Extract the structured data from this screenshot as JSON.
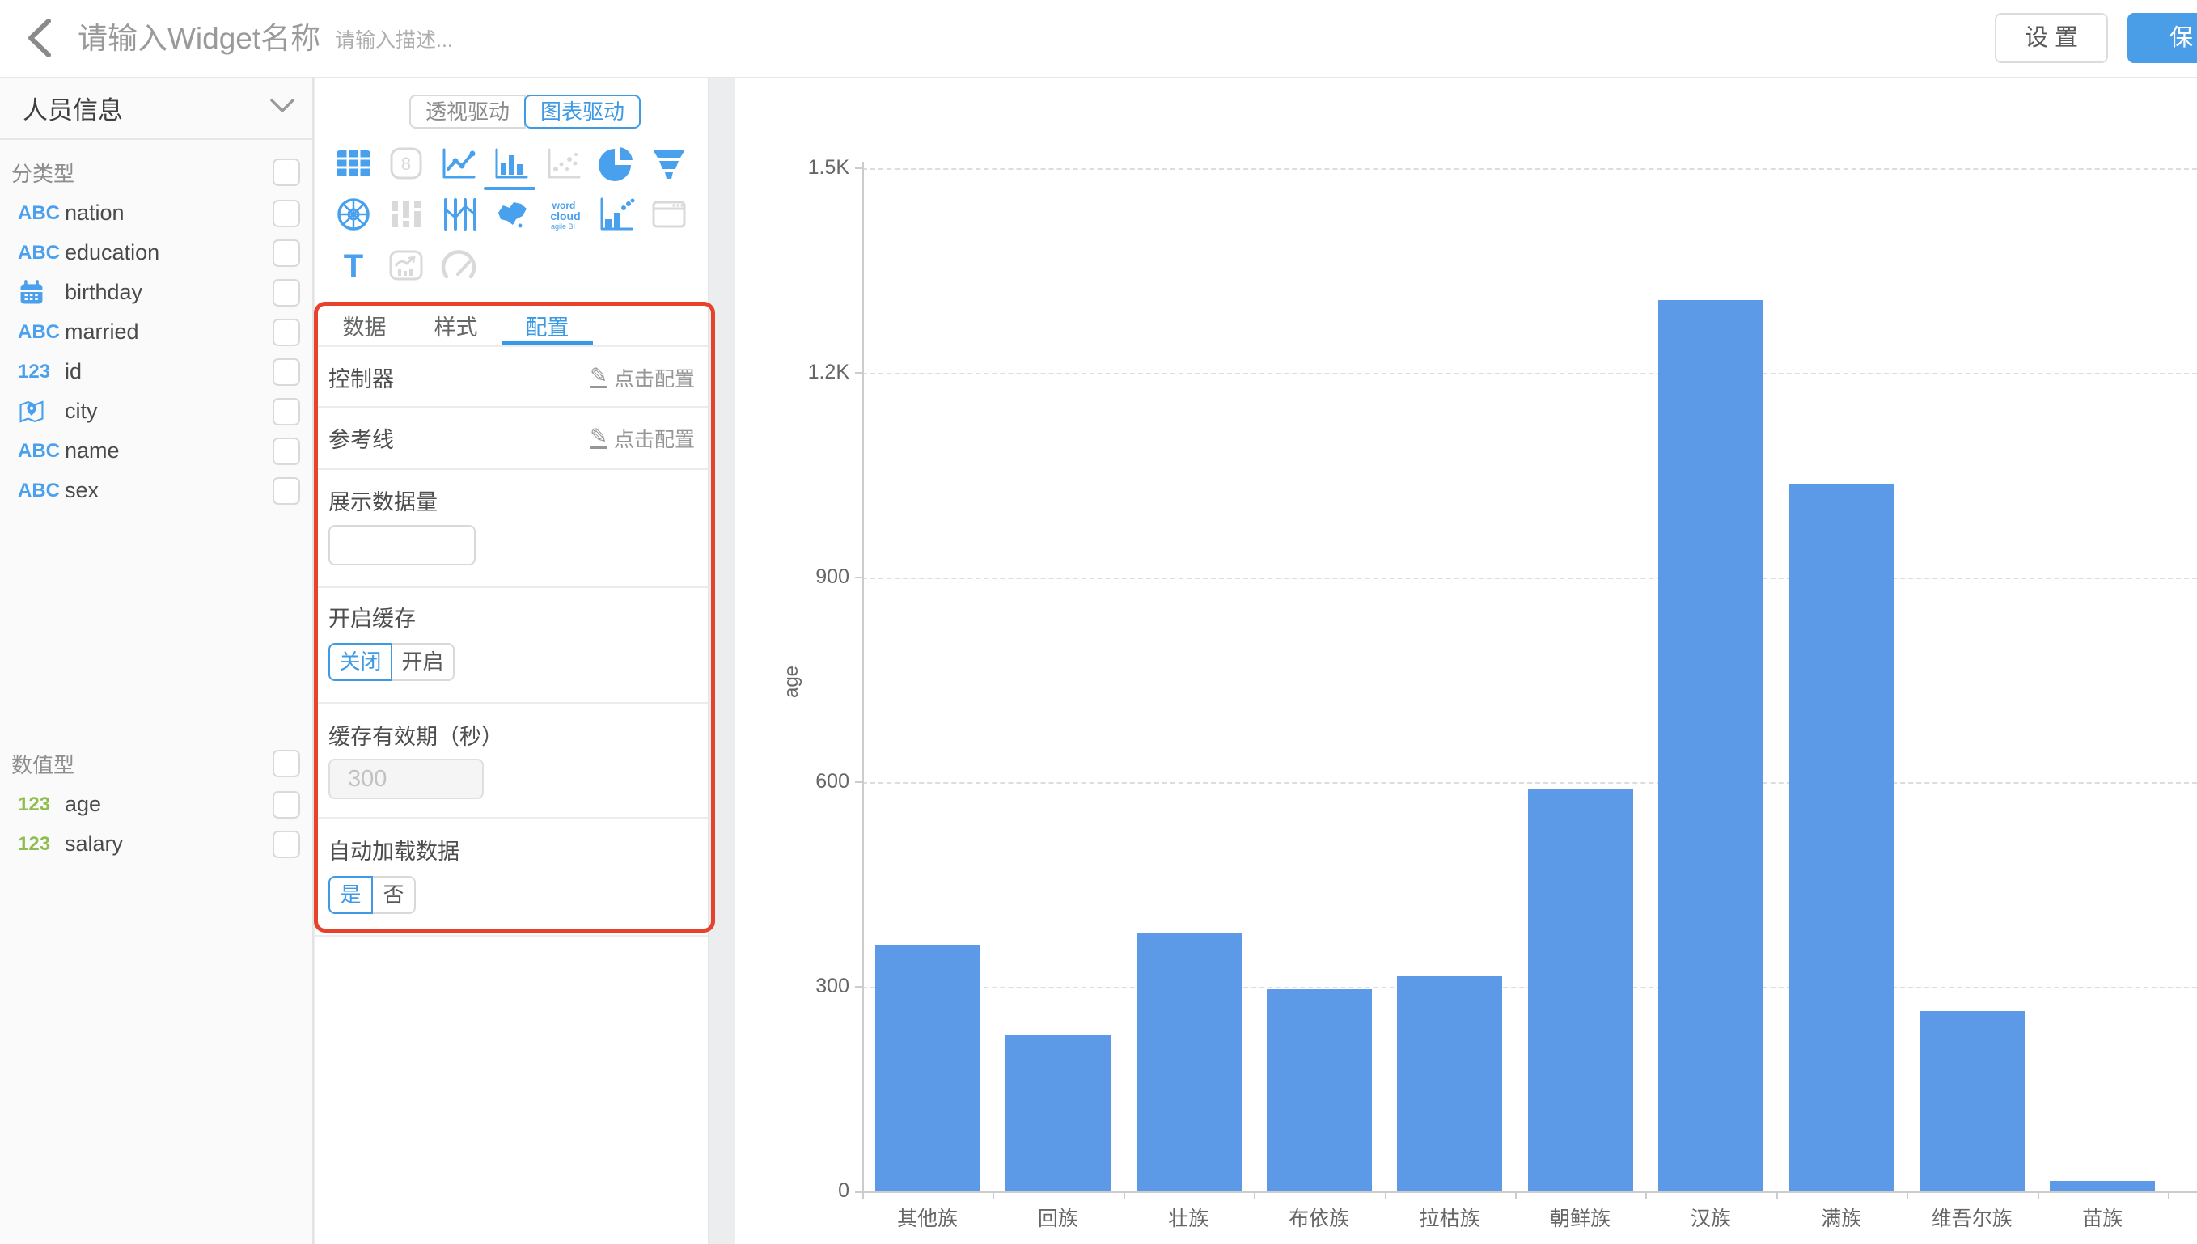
{
  "topbar": {
    "back_icon": "chevron-left",
    "title_placeholder": "请输入Widget名称",
    "desc_placeholder": "请输入描述...",
    "settings_label": "设 置",
    "save_label": "保 存"
  },
  "sidebar": {
    "view_name": "人员信息",
    "collapse_icon": "chevron-down",
    "groups": [
      {
        "title": "分类型",
        "fields": [
          {
            "icon": "abc",
            "icon_text": "ABC",
            "icon_color": "blue",
            "label": "nation"
          },
          {
            "icon": "abc",
            "icon_text": "ABC",
            "icon_color": "blue",
            "label": "education"
          },
          {
            "icon": "calendar",
            "icon_text": "",
            "icon_color": "blue",
            "label": "birthday"
          },
          {
            "icon": "abc",
            "icon_text": "ABC",
            "icon_color": "blue",
            "label": "married"
          },
          {
            "icon": "123",
            "icon_text": "123",
            "icon_color": "blue",
            "label": "id"
          },
          {
            "icon": "geo",
            "icon_text": "",
            "icon_color": "blue",
            "label": "city"
          },
          {
            "icon": "abc",
            "icon_text": "ABC",
            "icon_color": "blue",
            "label": "name"
          },
          {
            "icon": "abc",
            "icon_text": "ABC",
            "icon_color": "blue",
            "label": "sex"
          }
        ]
      },
      {
        "title": "数值型",
        "fields": [
          {
            "icon": "123",
            "icon_text": "123",
            "icon_color": "green",
            "label": "age"
          },
          {
            "icon": "123",
            "icon_text": "123",
            "icon_color": "green",
            "label": "salary"
          }
        ]
      }
    ]
  },
  "panel": {
    "mode_toggle": {
      "options": [
        "透视驱动",
        "图表驱动"
      ],
      "selected": "图表驱动"
    },
    "chart_types": [
      {
        "name": "table",
        "state": "enabled"
      },
      {
        "name": "scorecard",
        "state": "disabled"
      },
      {
        "name": "line",
        "state": "enabled"
      },
      {
        "name": "bar",
        "state": "selected"
      },
      {
        "name": "scatter",
        "state": "disabled"
      },
      {
        "name": "pie",
        "state": "enabled"
      },
      {
        "name": "funnel",
        "state": "enabled"
      },
      {
        "name": "radar",
        "state": "enabled"
      },
      {
        "name": "sankey",
        "state": "disabled"
      },
      {
        "name": "parallel",
        "state": "enabled"
      },
      {
        "name": "map",
        "state": "enabled"
      },
      {
        "name": "wordcloud",
        "state": "enabled"
      },
      {
        "name": "waterfall",
        "state": "enabled"
      },
      {
        "name": "iframe",
        "state": "disabled"
      },
      {
        "name": "text",
        "state": "enabled"
      },
      {
        "name": "richtext",
        "state": "disabled"
      },
      {
        "name": "gauge",
        "state": "disabled"
      }
    ],
    "tabs": [
      {
        "label": "数据",
        "active": false
      },
      {
        "label": "样式",
        "active": false
      },
      {
        "label": "配置",
        "active": true
      }
    ],
    "config": {
      "controller_label": "控制器",
      "controller_action": "点击配置",
      "reference_label": "参考线",
      "reference_action": "点击配置",
      "edit_icon": "✎",
      "display_count_label": "展示数据量",
      "display_count_value": "",
      "cache_label": "开启缓存",
      "cache_options": [
        "关闭",
        "开启"
      ],
      "cache_selected": "关闭",
      "cache_ttl_label": "缓存有效期（秒）",
      "cache_ttl_value": "300",
      "autoload_label": "自动加载数据",
      "autoload_options": [
        "是",
        "否"
      ],
      "autoload_selected": "是"
    }
  },
  "chart_data": {
    "type": "bar",
    "title": "",
    "xlabel": "",
    "ylabel": "age",
    "categories": [
      "其他族",
      "回族",
      "壮族",
      "布依族",
      "拉枯族",
      "朝鲜族",
      "汉族",
      "满族",
      "维吾尔族",
      "苗族"
    ],
    "values": [
      362,
      229,
      378,
      296,
      316,
      589,
      1307,
      1036,
      264,
      16
    ],
    "ylim": [
      0,
      1500
    ],
    "yticks": [
      {
        "value": 0,
        "label": "0"
      },
      {
        "value": 300,
        "label": "300"
      },
      {
        "value": 600,
        "label": "600"
      },
      {
        "value": 900,
        "label": "900"
      },
      {
        "value": 1200,
        "label": "1.2K"
      },
      {
        "value": 1500,
        "label": "1.5K"
      }
    ],
    "grid": "horizontal-dashed",
    "legend": "none",
    "bar_color": "#5c9ae8"
  },
  "annotation": {
    "type": "highlight-box",
    "color": "#e7432c"
  },
  "colors": {
    "accent_blue": "#3f9ae5",
    "icon_blue": "#49a0ec",
    "icon_green": "#8fbe50",
    "bar_blue": "#5c9ae8",
    "annotation_red": "#e7432c",
    "save_button": "#4a9ee8"
  }
}
